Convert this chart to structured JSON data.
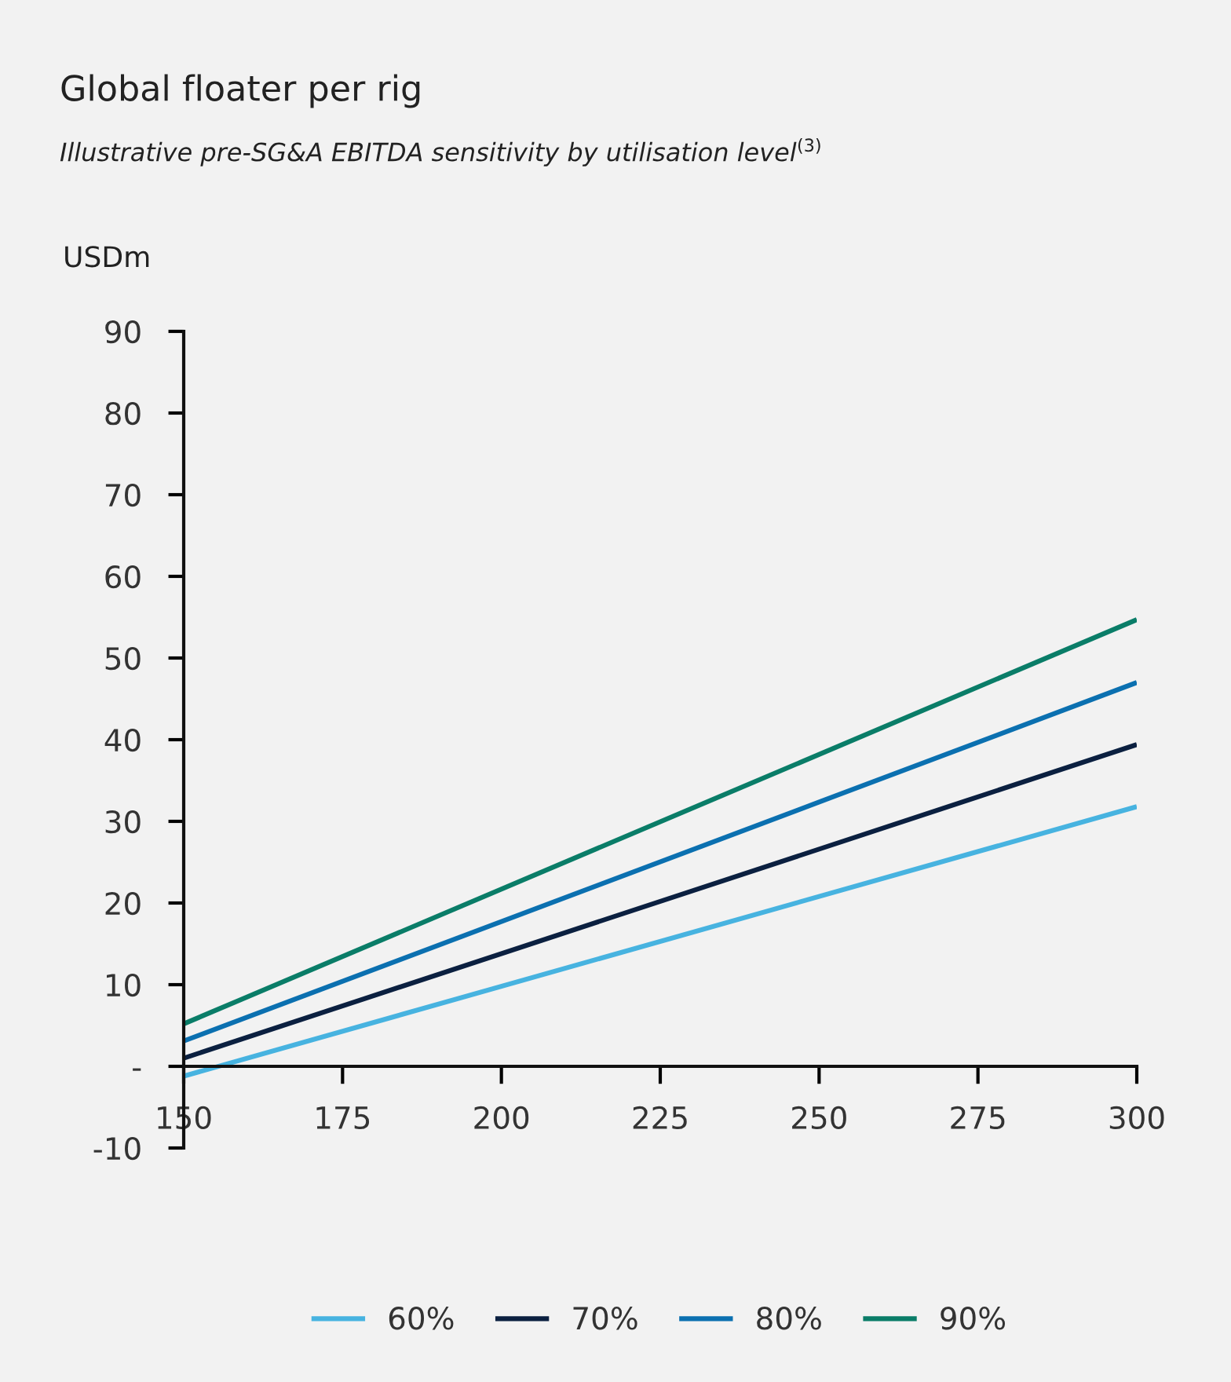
{
  "chart_data": {
    "type": "line",
    "title": "Global floater per rig",
    "subtitle": "Illustrative pre-SG&A EBITDA sensitivity by utilisation level$^{(3)}$",
    "ylabel": "USDm",
    "x": [
      150,
      300
    ],
    "series": [
      {
        "name": "60%",
        "color": "#47b3e0",
        "values": [
          -1.2,
          31.8
        ]
      },
      {
        "name": "70%",
        "color": "#0b2040",
        "values": [
          1.0,
          39.4
        ]
      },
      {
        "name": "80%",
        "color": "#0b70b0",
        "values": [
          3.1,
          47.0
        ]
      },
      {
        "name": "90%",
        "color": "#0a7d68",
        "values": [
          5.2,
          54.7
        ]
      }
    ],
    "xlim": [
      150,
      300
    ],
    "xticks": [
      150,
      175,
      200,
      225,
      250,
      275,
      300
    ],
    "ylim": [
      -10,
      90
    ],
    "yticks": [
      {
        "value": -10,
        "label": "-10"
      },
      {
        "value": 0,
        "label": "-"
      },
      10,
      20,
      30,
      40,
      50,
      60,
      70,
      80,
      90
    ],
    "grid": false,
    "legend": "bottom",
    "marker": "none",
    "line_style": "solid"
  }
}
